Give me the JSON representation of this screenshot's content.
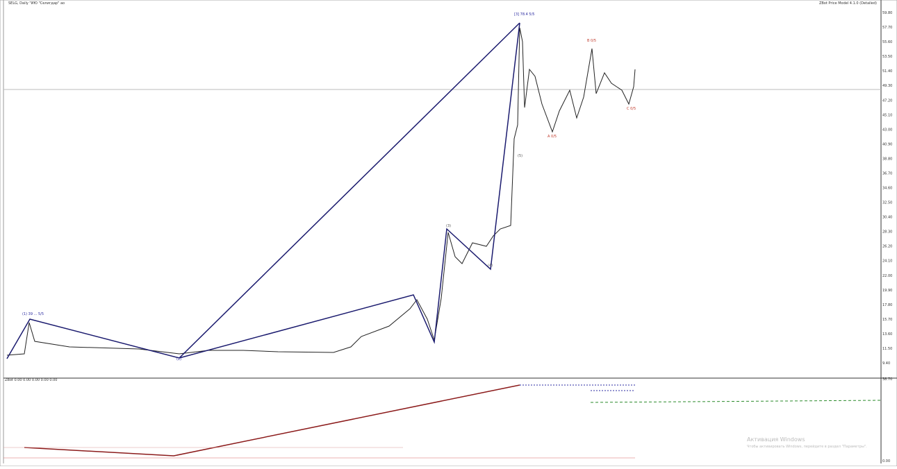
{
  "header": {
    "title": "SELG, Daily \"ИЮ \"Селигдар\" ао",
    "indicator_name": "ZBot Price Model 4.1.0 (Detailed)"
  },
  "price_axis": [
    "59.80",
    "57.70",
    "55.60",
    "53.50",
    "51.40",
    "49.30",
    "47.20",
    "45.10",
    "43.00",
    "40.90",
    "38.80",
    "36.70",
    "34.60",
    "32.50",
    "30.40",
    "28.30",
    "26.20",
    "24.10",
    "22.00",
    "19.90",
    "17.80",
    "15.70",
    "13.60",
    "11.50",
    "9.40"
  ],
  "wave_labels": [
    "(1) 39 ... 5/5",
    "[3] 78.4 5/5",
    "(2)",
    "A 0/5",
    "B 0/5",
    "C 0/5",
    "(4)",
    "(5)",
    "(3)"
  ],
  "subpanel": {
    "label": "ZBot 0.00 0.00 0.00 0.00 0.00",
    "axis_top": "38.70",
    "axis_bottom": "0.00"
  },
  "watermark": {
    "title": "Активация Windows",
    "text": "Чтобы активировать Windows, перейдите в раздел \"Параметры\"."
  }
}
